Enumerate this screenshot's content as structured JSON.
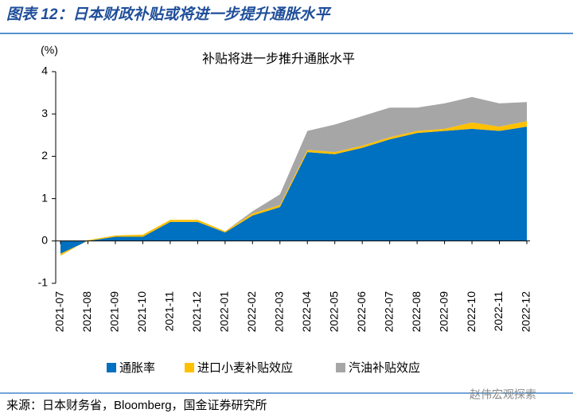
{
  "header": {
    "title": "图表 12：日本财政补贴或将进一步提升通胀水平"
  },
  "chart_data": {
    "type": "stacked-area",
    "title": "补贴将进一步推升通胀水平",
    "y_label": "(%)",
    "categories": [
      "2021-07",
      "2021-08",
      "2021-09",
      "2021-10",
      "2021-11",
      "2021-12",
      "2022-01",
      "2022-02",
      "2022-03",
      "2022-04",
      "2022-05",
      "2022-06",
      "2022-07",
      "2022-08",
      "2022-09",
      "2022-10",
      "2022-11",
      "2022-12"
    ],
    "series": [
      {
        "name": "通胀率",
        "color": "#0070c0",
        "values": [
          -0.3,
          0.0,
          0.1,
          0.1,
          0.45,
          0.45,
          0.2,
          0.6,
          0.8,
          2.1,
          2.05,
          2.2,
          2.4,
          2.55,
          2.6,
          2.65,
          2.6,
          2.7
        ]
      },
      {
        "name": "进口小麦补贴效应",
        "color": "#ffc000",
        "values": [
          -0.05,
          0.02,
          0.03,
          0.05,
          0.05,
          0.05,
          0.03,
          0.05,
          0.05,
          0.05,
          0.05,
          0.05,
          0.05,
          0.05,
          0.05,
          0.15,
          0.1,
          0.13
        ]
      },
      {
        "name": "汽油补贴效应",
        "color": "#a6a6a6",
        "values": [
          0,
          0,
          0,
          0,
          0,
          0,
          0,
          0.05,
          0.25,
          0.45,
          0.65,
          0.7,
          0.7,
          0.55,
          0.6,
          0.6,
          0.55,
          0.45
        ]
      }
    ],
    "ylim": [
      -1,
      4
    ],
    "yticks": [
      -1,
      0,
      1,
      2,
      3,
      4
    ],
    "legend": "bottom"
  },
  "footer": {
    "source": "来源：日本财务省，Bloomberg，国金证券研究所",
    "watermark": "赵伟宏观探索"
  }
}
